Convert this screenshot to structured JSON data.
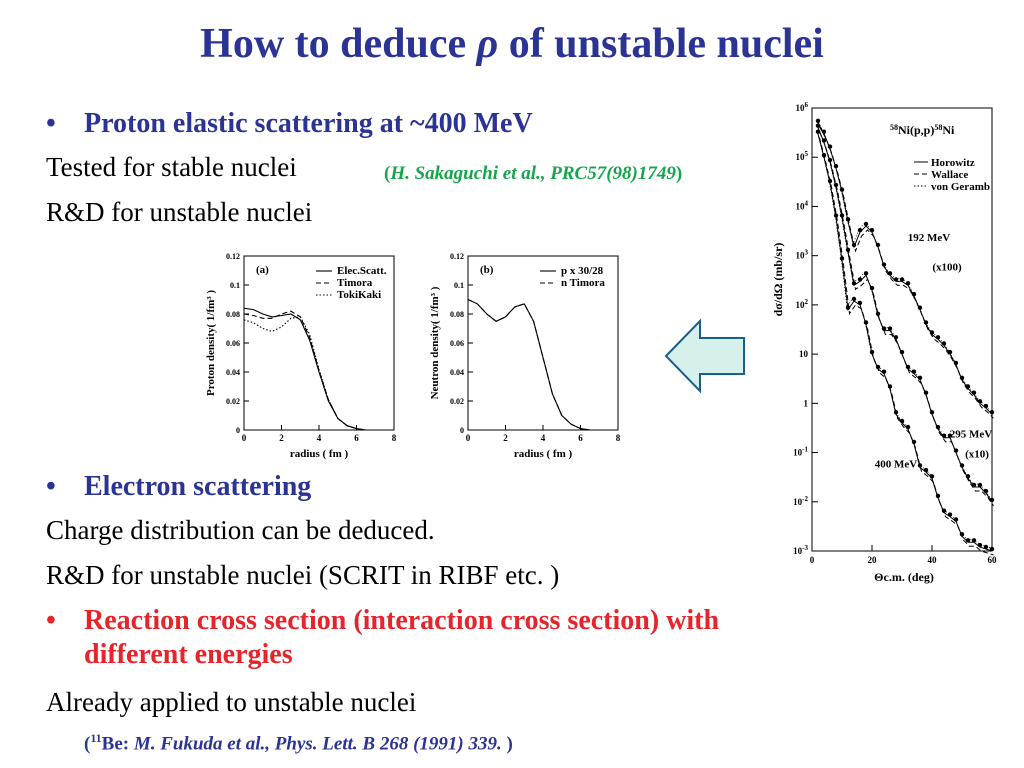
{
  "slide": {
    "title_before": "How to deduce ",
    "title_symbol": "ρ",
    "title_after": " of unstable nuclei",
    "bullet_char": "•",
    "bullet1": "Proton elastic scattering at ~400 MeV",
    "line1": "Tested for stable nuclei",
    "cite1_open": "(",
    "cite1_text": "H. Sakaguchi et al., PRC57(98)1749",
    "cite1_close": ")",
    "line2": "R&D for unstable nuclei",
    "bullet2": "Electron scattering",
    "line3": "Charge distribution can be deduced.",
    "line4": "R&D for unstable nuclei (SCRIT in RIBF etc. )",
    "bullet3_line1": "Reaction cross section (interaction cross section) with",
    "bullet3_line2": "different energies",
    "line5": "Already applied to unstable nuclei",
    "cite2_open": "(",
    "cite2_sup": "11",
    "cite2_nucleus": "Be: ",
    "cite2_text": "M. Fukuda et al., Phys. Lett. B 268 (1991) 339.",
    "cite2_close": " )"
  },
  "colors": {
    "title": "#2b3494",
    "accent_red": "#e8232a",
    "cite_green": "#14a64a",
    "arrow_fill": "#d6f0ec",
    "arrow_stroke": "#1a5f8c"
  },
  "arrow": {
    "icon": "arrow-left-icon",
    "direction": "left"
  },
  "chart_data": [
    {
      "type": "line",
      "panel_label": "(a)",
      "xlabel": "radius ( fm )",
      "ylabel": "Proton density( 1/fm³ )",
      "xlim": [
        0,
        8
      ],
      "ylim": [
        0,
        0.12
      ],
      "x_ticks": [
        "0",
        "2",
        "4",
        "6",
        "8"
      ],
      "y_ticks": [
        "0",
        "0.02",
        "0.04",
        "0.06",
        "0.08",
        "0.1",
        "0.12"
      ],
      "legend_position": "top-right",
      "series": [
        {
          "name": "Elec.Scatt.",
          "style": "solid",
          "x": [
            0,
            0.5,
            1,
            1.5,
            2,
            2.5,
            3,
            3.5,
            4,
            4.5,
            5,
            5.5,
            6,
            6.5,
            7,
            7.5,
            8
          ],
          "y": [
            0.084,
            0.083,
            0.08,
            0.078,
            0.079,
            0.08,
            0.076,
            0.062,
            0.04,
            0.02,
            0.008,
            0.003,
            0.001,
            0,
            0,
            0,
            0
          ]
        },
        {
          "name": "Timora",
          "style": "dashed",
          "x": [
            0,
            0.5,
            1,
            1.5,
            2,
            2.5,
            3,
            3.5,
            4,
            4.5,
            5,
            5.5,
            6,
            6.5,
            7,
            7.5,
            8
          ],
          "y": [
            0.08,
            0.079,
            0.077,
            0.077,
            0.08,
            0.082,
            0.078,
            0.064,
            0.041,
            0.021,
            0.008,
            0.003,
            0.001,
            0,
            0,
            0,
            0
          ]
        },
        {
          "name": "TokiKaki",
          "style": "dotted",
          "x": [
            0,
            0.5,
            1,
            1.5,
            2,
            2.5,
            3,
            3.5,
            4,
            4.5,
            5,
            5.5,
            6,
            6.5,
            7,
            7.5,
            8
          ],
          "y": [
            0.076,
            0.074,
            0.07,
            0.068,
            0.071,
            0.077,
            0.078,
            0.066,
            0.042,
            0.021,
            0.008,
            0.003,
            0.001,
            0,
            0,
            0,
            0
          ]
        }
      ]
    },
    {
      "type": "line",
      "panel_label": "(b)",
      "xlabel": "radius ( fm )",
      "ylabel": "Neutron density( 1/fm³ )",
      "xlim": [
        0,
        8
      ],
      "ylim": [
        0,
        0.12
      ],
      "x_ticks": [
        "0",
        "2",
        "4",
        "6",
        "8"
      ],
      "y_ticks": [
        "0",
        "0.02",
        "0.04",
        "0.06",
        "0.08",
        "0.1",
        "0.12"
      ],
      "legend_position": "top-right",
      "series": [
        {
          "name": "p x 30/28",
          "style": "solid",
          "x": [
            0,
            0.5,
            1,
            1.5,
            2,
            2.5,
            3,
            3.5,
            4,
            4.5,
            5,
            5.5,
            6,
            6.5,
            7,
            7.5,
            8
          ],
          "y": [
            0.09,
            0.087,
            0.08,
            0.075,
            0.078,
            0.085,
            0.087,
            0.075,
            0.05,
            0.025,
            0.01,
            0.004,
            0.001,
            0,
            0,
            0,
            0
          ]
        },
        {
          "name": "n Timora",
          "style": "dashed",
          "x": [
            0,
            0.5,
            1,
            1.5,
            2,
            2.5,
            3,
            3.5,
            4,
            4.5,
            5,
            5.5,
            6,
            6.5,
            7,
            7.5,
            8
          ],
          "y": [
            0.09,
            0.087,
            0.08,
            0.075,
            0.078,
            0.085,
            0.087,
            0.075,
            0.05,
            0.025,
            0.01,
            0.004,
            0.001,
            0,
            0,
            0,
            0
          ]
        }
      ]
    },
    {
      "type": "line",
      "title_pre": "58",
      "title_mid": "Ni(p,p)",
      "title_sup2": "58",
      "title_post": "Ni",
      "xlabel": "Θc.m. (deg)",
      "ylabel": "dσ/dΩ (mb/sr)",
      "x_scale": "linear",
      "y_scale": "log",
      "xlim": [
        0,
        60
      ],
      "ylim": [
        0.001,
        1000000
      ],
      "x_ticks": [
        "0",
        "20",
        "40",
        "60"
      ],
      "y_ticks": [
        {
          "base": "10",
          "exp": "6",
          "v": 1000000
        },
        {
          "base": "10",
          "exp": "5",
          "v": 100000
        },
        {
          "base": "10",
          "exp": "4",
          "v": 10000
        },
        {
          "base": "10",
          "exp": "3",
          "v": 1000
        },
        {
          "base": "10",
          "exp": "2",
          "v": 100
        },
        {
          "base": "10",
          "exp": "",
          "v": 10
        },
        {
          "base": "1",
          "exp": "",
          "v": 1
        },
        {
          "base": "10",
          "exp": "-1",
          "v": 0.1
        },
        {
          "base": "10",
          "exp": "-2",
          "v": 0.01
        },
        {
          "base": "10",
          "exp": "-3",
          "v": 0.001
        }
      ],
      "legend_position": "top-right",
      "legend": [
        {
          "name": "Horowitz",
          "style": "solid"
        },
        {
          "name": "Wallace",
          "style": "dashed"
        },
        {
          "name": "von Geramb",
          "style": "dotted"
        }
      ],
      "annotations": [
        {
          "text": "192 MeV",
          "x": 39,
          "y": 2000
        },
        {
          "text": "(x100)",
          "x": 45,
          "y": 500
        },
        {
          "text": "295 MeV",
          "x": 53,
          "y": 0.2
        },
        {
          "text": "(x10)",
          "x": 55,
          "y": 0.08
        },
        {
          "text": "400 MeV",
          "x": 28,
          "y": 0.05
        }
      ],
      "curves": [
        {
          "name": "192 MeV (x100)",
          "x": [
            2,
            4,
            6,
            8,
            10,
            12,
            14,
            16,
            18,
            20,
            22,
            24,
            26,
            28,
            30,
            32,
            34,
            36,
            38,
            40,
            42,
            44,
            46,
            48,
            50,
            52,
            54,
            56,
            58,
            60
          ],
          "y": [
            500000,
            300000,
            150000,
            60000,
            20000,
            5000,
            1500,
            3000,
            4000,
            3000,
            1500,
            600,
            400,
            300,
            300,
            250,
            150,
            80,
            40,
            25,
            20,
            15,
            10,
            6,
            3,
            2,
            1.5,
            1,
            0.8,
            0.6
          ]
        },
        {
          "name": "295 MeV (x10)",
          "x": [
            2,
            4,
            6,
            8,
            10,
            12,
            14,
            16,
            18,
            20,
            22,
            24,
            26,
            28,
            30,
            32,
            34,
            36,
            38,
            40,
            42,
            44,
            46,
            48,
            50,
            52,
            54,
            56,
            58,
            60
          ],
          "y": [
            400000,
            200000,
            80000,
            25000,
            6000,
            1200,
            250,
            300,
            400,
            200,
            60,
            30,
            30,
            20,
            10,
            5,
            4,
            3,
            1.5,
            0.6,
            0.3,
            0.2,
            0.2,
            0.1,
            0.05,
            0.03,
            0.02,
            0.02,
            0.015,
            0.01
          ]
        },
        {
          "name": "400 MeV",
          "x": [
            2,
            4,
            6,
            8,
            10,
            12,
            14,
            16,
            18,
            20,
            22,
            24,
            26,
            28,
            30,
            32,
            34,
            36,
            38,
            40,
            42,
            44,
            46,
            48,
            50,
            52,
            54,
            56,
            58,
            60
          ],
          "y": [
            300000,
            100000,
            30000,
            6000,
            800,
            80,
            120,
            100,
            40,
            10,
            5,
            4,
            2,
            0.6,
            0.4,
            0.3,
            0.15,
            0.05,
            0.04,
            0.03,
            0.012,
            0.006,
            0.005,
            0.004,
            0.002,
            0.0015,
            0.0015,
            0.0012,
            0.0011,
            0.001
          ]
        }
      ]
    }
  ]
}
